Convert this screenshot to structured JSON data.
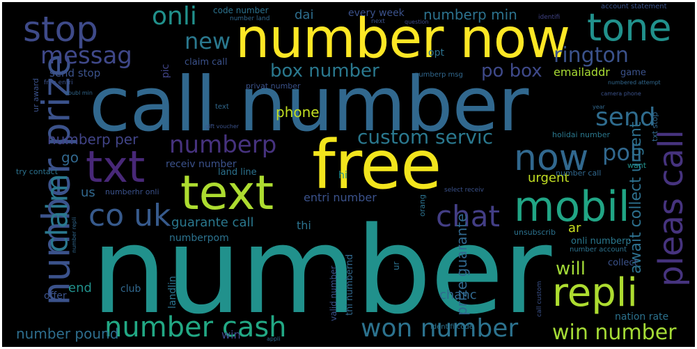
{
  "palette": {
    "background": "#000000",
    "purple": "#46327e",
    "indigo": "#3b528b",
    "blue": "#365c8d",
    "teal_blue": "#2c728e",
    "teal": "#21918c",
    "green_teal": "#1fa187",
    "green": "#5ec962",
    "lime": "#addc30",
    "yellow": "#fde725"
  },
  "words": [
    {
      "text": "number",
      "color": "#21918c"
    },
    {
      "text": "call number",
      "color": "#31688e"
    },
    {
      "text": "number now",
      "color": "#fde725"
    },
    {
      "text": "free",
      "color": "#f2e51d"
    },
    {
      "text": "text",
      "color": "#addc30"
    },
    {
      "text": "txt",
      "color": "#482878"
    },
    {
      "text": "mobil",
      "color": "#21a585"
    },
    {
      "text": "repli",
      "color": "#addc30"
    },
    {
      "text": "number prize",
      "color": "#3b528b"
    },
    {
      "text": "tone",
      "color": "#21918c"
    },
    {
      "text": "stop",
      "color": "#3e4a89"
    },
    {
      "text": "now",
      "color": "#31688e"
    },
    {
      "text": "pleas call",
      "color": "#46337e"
    },
    {
      "text": "co uk",
      "color": "#375a8c"
    },
    {
      "text": "chat",
      "color": "#433e85"
    },
    {
      "text": "claim",
      "color": "#2a788e"
    },
    {
      "text": "number cash",
      "color": "#22a884"
    },
    {
      "text": "won number",
      "color": "#2c728e"
    },
    {
      "text": "win number",
      "color": "#a5db36"
    },
    {
      "text": "messag",
      "color": "#3f4889"
    },
    {
      "text": "new",
      "color": "#2a788e"
    },
    {
      "text": "onli",
      "color": "#21918c"
    },
    {
      "text": "rington",
      "color": "#3b528b"
    },
    {
      "text": "send",
      "color": "#2f6c8e"
    },
    {
      "text": "poli",
      "color": "#31688e"
    },
    {
      "text": "numberp",
      "color": "#46327e"
    },
    {
      "text": "box number",
      "color": "#2a788e"
    },
    {
      "text": "po box",
      "color": "#3e4989"
    },
    {
      "text": "custom servic",
      "color": "#2a788e"
    },
    {
      "text": "numberp per",
      "color": "#414487"
    },
    {
      "text": "will",
      "color": "#a2da37"
    },
    {
      "text": "await collect urgent",
      "color": "#2d708e"
    },
    {
      "text": "number pound",
      "color": "#2e6e8e"
    },
    {
      "text": "dai",
      "color": "#2e6e8e"
    },
    {
      "text": "numberp min",
      "color": "#2c728e"
    },
    {
      "text": "every week",
      "color": "#3b528b"
    },
    {
      "text": "code number",
      "color": "#2c728e"
    },
    {
      "text": "number land",
      "color": "#31688e"
    },
    {
      "text": "next",
      "color": "#3b528b"
    },
    {
      "text": "question",
      "color": "#3e4a89"
    },
    {
      "text": "account statement",
      "color": "#3b528b"
    },
    {
      "text": "identifi",
      "color": "#414487"
    },
    {
      "text": "phone",
      "color": "#c2df23"
    },
    {
      "text": "emailaddr",
      "color": "#a8db34"
    },
    {
      "text": "game",
      "color": "#3b528b"
    },
    {
      "text": "send stop",
      "color": "#3b528b"
    },
    {
      "text": "claim call",
      "color": "#3b528b"
    },
    {
      "text": "privat number",
      "color": "#3b528b"
    },
    {
      "text": "pic",
      "color": "#414487"
    },
    {
      "text": "opt",
      "color": "#2c728e"
    },
    {
      "text": "numberp msg",
      "color": "#31688e"
    },
    {
      "text": "text",
      "color": "#31688e"
    },
    {
      "text": "receiv number",
      "color": "#3b528b"
    },
    {
      "text": "land line",
      "color": "#2c728e"
    },
    {
      "text": "go",
      "color": "#31688e"
    },
    {
      "text": "hi",
      "color": "#21918c"
    },
    {
      "text": "urgent",
      "color": "#c2df23"
    },
    {
      "text": "number call",
      "color": "#31688e"
    },
    {
      "text": "want",
      "color": "#21918c"
    },
    {
      "text": "holidai number",
      "color": "#2a788e"
    },
    {
      "text": "txt stop",
      "color": "#31688e"
    },
    {
      "text": "us",
      "color": "#31688e"
    },
    {
      "text": "numberhr onli",
      "color": "#3b528b"
    },
    {
      "text": "entri number",
      "color": "#3b528b"
    },
    {
      "text": "select receiv",
      "color": "#3b528b"
    },
    {
      "text": "orang",
      "color": "#2c728e"
    },
    {
      "text": "guarante call",
      "color": "#2a788e"
    },
    {
      "text": "thi",
      "color": "#2c728e"
    },
    {
      "text": "ar",
      "color": "#c8e020"
    },
    {
      "text": "unsubscrib",
      "color": "#2c728e"
    },
    {
      "text": "try contact",
      "color": "#2c728e"
    },
    {
      "text": "onli numberp",
      "color": "#2a788e"
    },
    {
      "text": "number account",
      "color": "#2c728e"
    },
    {
      "text": "collect",
      "color": "#3b528b"
    },
    {
      "text": "prize guarante",
      "color": "#31688e"
    },
    {
      "text": "club",
      "color": "#31688e"
    },
    {
      "text": "landlin",
      "color": "#2c728e"
    },
    {
      "text": "numberpom",
      "color": "#2c728e"
    },
    {
      "text": "thi numbernd",
      "color": "#31688e"
    },
    {
      "text": "valid number",
      "color": "#3b528b"
    },
    {
      "text": "chanc",
      "color": "#31688e"
    },
    {
      "text": "nation rate",
      "color": "#2c728e"
    },
    {
      "text": "end",
      "color": "#21918c"
    },
    {
      "text": "offer",
      "color": "#3b528b"
    },
    {
      "text": "win",
      "color": "#3e4989"
    },
    {
      "text": "identifi code",
      "color": "#2c728e"
    },
    {
      "text": "call custom",
      "color": "#3b528b"
    },
    {
      "text": "ur award",
      "color": "#3b528b"
    },
    {
      "text": "free entri",
      "color": "#3b528b"
    },
    {
      "text": "doubl min",
      "color": "#31688e"
    },
    {
      "text": "numbered attempt",
      "color": "#31688e"
    },
    {
      "text": "camera phone",
      "color": "#3b528b"
    },
    {
      "text": "gift voucher",
      "color": "#3b528b"
    },
    {
      "text": "year",
      "color": "#31688e"
    },
    {
      "text": "number repli",
      "color": "#31688e"
    },
    {
      "text": "appli",
      "color": "#31688e"
    },
    {
      "text": "ur",
      "color": "#2c728e"
    }
  ]
}
